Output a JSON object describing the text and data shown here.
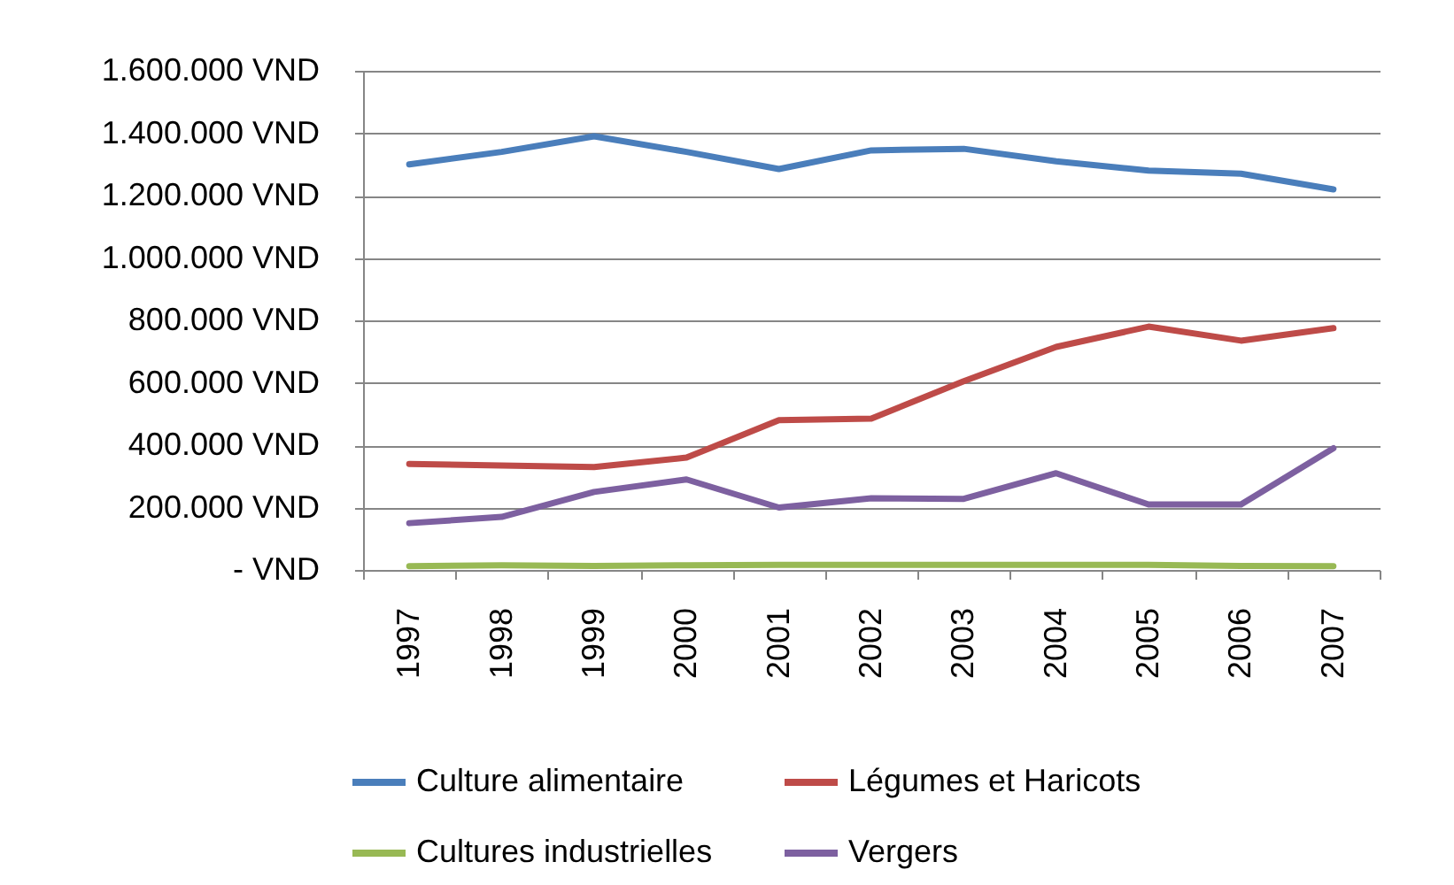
{
  "chart_data": {
    "type": "line",
    "categories": [
      "1997",
      "1998",
      "1999",
      "2000",
      "2001",
      "2002",
      "2003",
      "2004",
      "2005",
      "2006",
      "2007"
    ],
    "series": [
      {
        "name": "Culture alimentaire",
        "color": "#4a7ebb",
        "values": [
          1300000,
          1340000,
          1390000,
          1340000,
          1285000,
          1345000,
          1350000,
          1310000,
          1280000,
          1270000,
          1220000
        ]
      },
      {
        "name": "Légumes et Haricots",
        "color": "#be4b48",
        "values": [
          340000,
          335000,
          330000,
          360000,
          480000,
          485000,
          605000,
          715000,
          780000,
          735000,
          775000
        ]
      },
      {
        "name": "Cultures industrielles",
        "color": "#98b954",
        "values": [
          12000,
          15000,
          13000,
          15000,
          16000,
          16000,
          16000,
          16000,
          16000,
          13000,
          12000
        ]
      },
      {
        "name": "Vergers",
        "color": "#7d60a0",
        "values": [
          150000,
          170000,
          250000,
          290000,
          200000,
          230000,
          228000,
          310000,
          210000,
          210000,
          390000
        ]
      }
    ],
    "ylim": [
      0,
      1600000
    ],
    "yticks": [
      {
        "value": 0,
        "label": "-   VND"
      },
      {
        "value": 200000,
        "label": "200.000 VND"
      },
      {
        "value": 400000,
        "label": "400.000 VND"
      },
      {
        "value": 600000,
        "label": "600.000 VND"
      },
      {
        "value": 800000,
        "label": "800.000 VND"
      },
      {
        "value": 1000000,
        "label": "1.000.000 VND"
      },
      {
        "value": 1200000,
        "label": "1.200.000 VND"
      },
      {
        "value": 1400000,
        "label": "1.400.000 VND"
      },
      {
        "value": 1600000,
        "label": "1.600.000 VND"
      }
    ],
    "grid": "y",
    "legend": "bottom",
    "line_style": "solid"
  }
}
